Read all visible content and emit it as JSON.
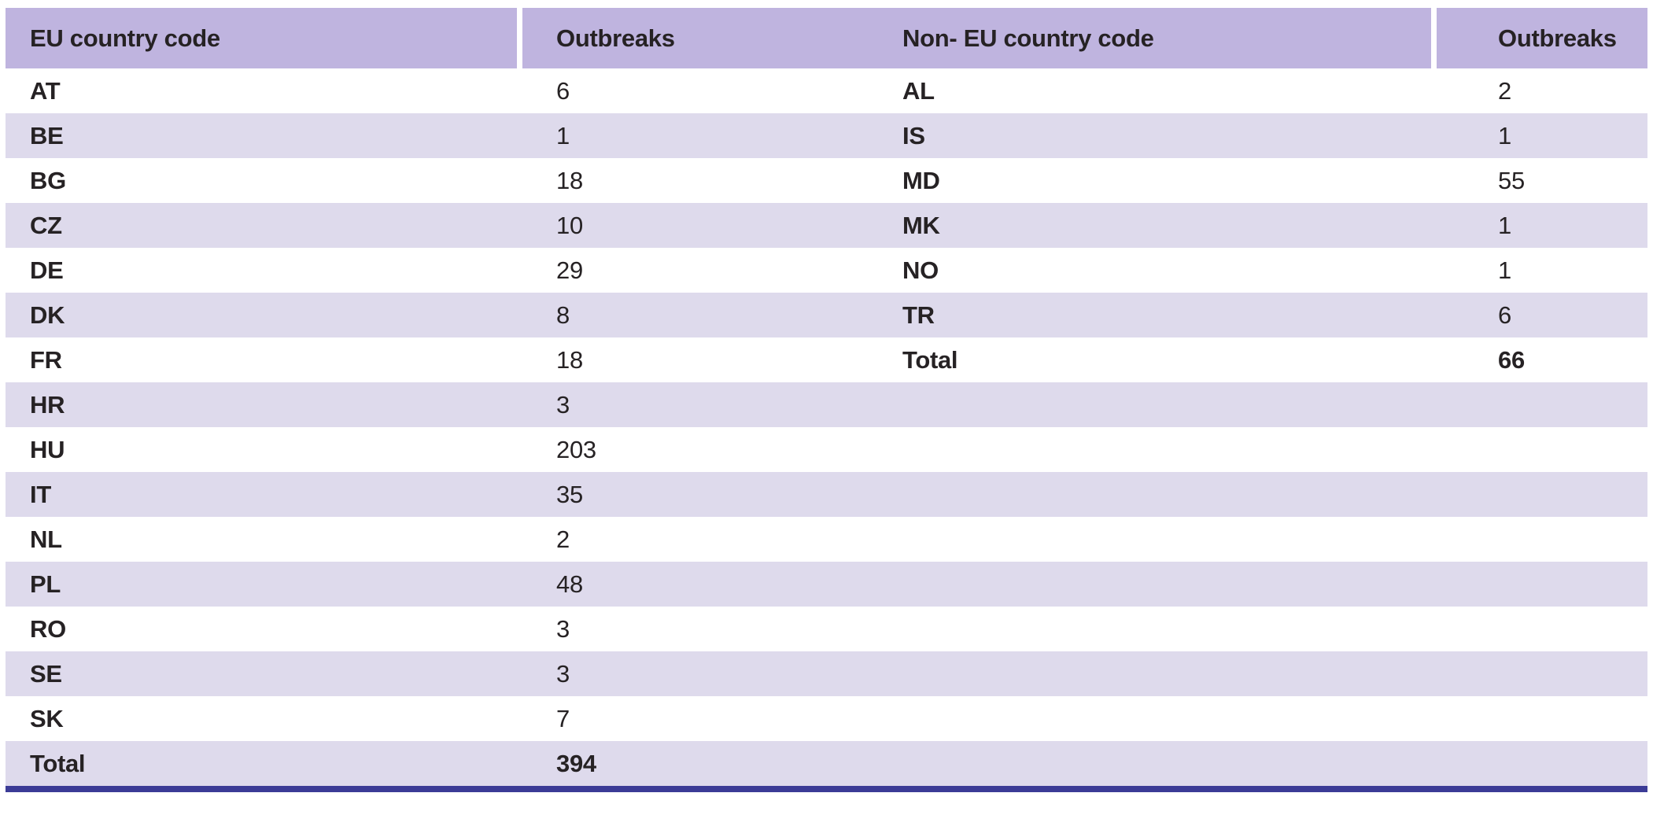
{
  "colors": {
    "header_bg": "#bfb4df",
    "stripe_bg": "#dedaec",
    "row_bg": "#ffffff",
    "bottom_rule": "#3b3b96",
    "text": "#262224"
  },
  "table": {
    "headers": [
      "EU country code",
      "Outbreaks",
      "Non- EU country code",
      "Outbreaks"
    ],
    "eu": {
      "rows": [
        {
          "code": "AT",
          "outbreaks": "6"
        },
        {
          "code": "BE",
          "outbreaks": "1"
        },
        {
          "code": "BG",
          "outbreaks": "18"
        },
        {
          "code": "CZ",
          "outbreaks": "10"
        },
        {
          "code": "DE",
          "outbreaks": "29"
        },
        {
          "code": "DK",
          "outbreaks": "8"
        },
        {
          "code": "FR",
          "outbreaks": "18"
        },
        {
          "code": "HR",
          "outbreaks": "3"
        },
        {
          "code": "HU",
          "outbreaks": "203"
        },
        {
          "code": "IT",
          "outbreaks": "35"
        },
        {
          "code": "NL",
          "outbreaks": "2"
        },
        {
          "code": "PL",
          "outbreaks": "48"
        },
        {
          "code": "RO",
          "outbreaks": "3"
        },
        {
          "code": "SE",
          "outbreaks": "3"
        },
        {
          "code": "SK",
          "outbreaks": "7"
        }
      ],
      "total": {
        "label": "Total",
        "outbreaks": "394"
      }
    },
    "non_eu": {
      "rows": [
        {
          "code": "AL",
          "outbreaks": "2"
        },
        {
          "code": "IS",
          "outbreaks": "1"
        },
        {
          "code": "MD",
          "outbreaks": "55"
        },
        {
          "code": "MK",
          "outbreaks": "1"
        },
        {
          "code": "NO",
          "outbreaks": "1"
        },
        {
          "code": "TR",
          "outbreaks": "6"
        }
      ],
      "total": {
        "label": "Total",
        "outbreaks": "66"
      }
    }
  }
}
